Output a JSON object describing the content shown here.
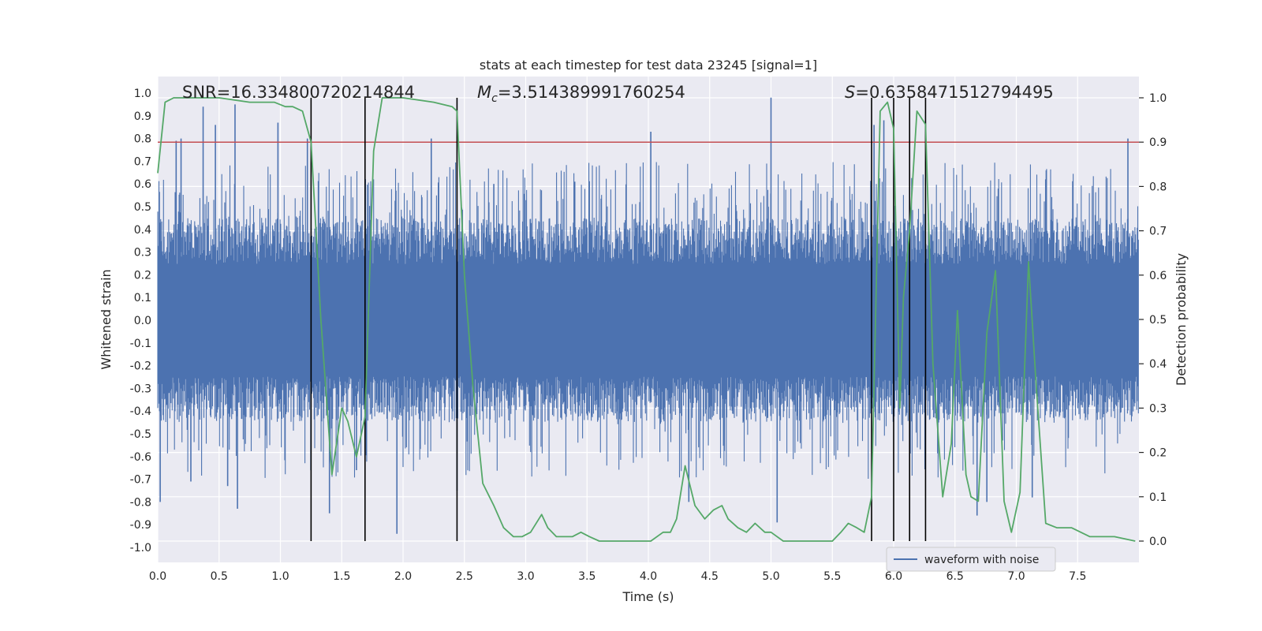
{
  "chart_data": {
    "type": "line",
    "title": "stats at each timestep for test data 23245 [signal=1]",
    "xlabel": "Time (s)",
    "ylabel_left": "Whitened strain",
    "ylabel_right": "Detection probability",
    "xlim": [
      0,
      8.0
    ],
    "ylim_left": [
      -1.05,
      1.05
    ],
    "ylim_right": [
      0,
      1.0
    ],
    "x_ticks": [
      "0.0",
      "0.5",
      "1.0",
      "1.5",
      "2.0",
      "2.5",
      "3.0",
      "3.5",
      "4.0",
      "4.5",
      "5.0",
      "5.5",
      "6.0",
      "6.5",
      "7.0",
      "7.5"
    ],
    "y_ticks_left": [
      "1.0",
      "0.9",
      "0.8",
      "0.7",
      "0.6",
      "0.5",
      "0.4",
      "0.3",
      "0.2",
      "0.1",
      "0.0",
      "-0.1",
      "-0.2",
      "-0.3",
      "-0.4",
      "-0.5",
      "-0.6",
      "-0.7",
      "-0.8",
      "-0.9",
      "-1.0"
    ],
    "y_ticks_right": [
      "1.0",
      "0.9",
      "0.8",
      "0.7",
      "0.6",
      "0.5",
      "0.4",
      "0.3",
      "0.2",
      "0.1",
      "0.0"
    ],
    "annotations": {
      "snr": "SNR=16.334800720214844",
      "mc_symbol": "M",
      "mc_sub": "c",
      "mc_value": "=3.514389991760254",
      "s_symbol": "S",
      "s_value": "=0.6358471512794495"
    },
    "legend": {
      "label": "waveform with noise",
      "placement": "lower-right"
    },
    "threshold": {
      "value": 0.9,
      "axis": "right",
      "color": "#c44e52"
    },
    "event_lines_x": [
      1.25,
      1.69,
      2.44,
      5.82,
      6.0,
      6.13,
      6.26
    ],
    "series": [
      {
        "name": "waveform with noise",
        "axis": "left",
        "color": "#4c72b0",
        "band": {
          "typical_min": -0.45,
          "typical_max": 0.45
        },
        "spikes": [
          {
            "x": 0.02,
            "y": -0.8
          },
          {
            "x": 0.15,
            "y": 0.79
          },
          {
            "x": 0.19,
            "y": 0.8
          },
          {
            "x": 0.27,
            "y": -0.71
          },
          {
            "x": 0.37,
            "y": 0.94
          },
          {
            "x": 0.47,
            "y": 0.86
          },
          {
            "x": 0.57,
            "y": -0.73
          },
          {
            "x": 0.63,
            "y": 0.95
          },
          {
            "x": 0.65,
            "y": -0.83
          },
          {
            "x": 0.98,
            "y": 0.87
          },
          {
            "x": 1.22,
            "y": 0.8
          },
          {
            "x": 1.4,
            "y": -0.85
          },
          {
            "x": 1.62,
            "y": -0.66
          },
          {
            "x": 1.95,
            "y": -0.94
          },
          {
            "x": 2.23,
            "y": 0.8
          },
          {
            "x": 2.44,
            "y": -0.75
          },
          {
            "x": 2.74,
            "y": 0.6
          },
          {
            "x": 3.4,
            "y": 0.61
          },
          {
            "x": 4.02,
            "y": 0.83
          },
          {
            "x": 4.33,
            "y": -0.8
          },
          {
            "x": 5.0,
            "y": 0.98
          },
          {
            "x": 5.05,
            "y": -0.89
          },
          {
            "x": 5.84,
            "y": 0.86
          },
          {
            "x": 5.92,
            "y": 0.88
          },
          {
            "x": 6.68,
            "y": -0.86
          },
          {
            "x": 6.76,
            "y": -0.8
          },
          {
            "x": 7.13,
            "y": -0.78
          },
          {
            "x": 7.91,
            "y": 0.8
          }
        ]
      },
      {
        "name": "detection probability",
        "axis": "right",
        "color": "#55a868",
        "x": [
          0.0,
          0.06,
          0.13,
          0.25,
          0.5,
          0.75,
          0.83,
          0.95,
          1.04,
          1.1,
          1.18,
          1.25,
          1.33,
          1.42,
          1.5,
          1.55,
          1.62,
          1.69,
          1.76,
          1.83,
          2.0,
          2.25,
          2.4,
          2.44,
          2.5,
          2.57,
          2.65,
          2.74,
          2.82,
          2.9,
          2.97,
          3.04,
          3.13,
          3.18,
          3.25,
          3.3,
          3.38,
          3.45,
          3.52,
          3.6,
          3.75,
          3.9,
          4.02,
          4.12,
          4.18,
          4.23,
          4.3,
          4.38,
          4.46,
          4.53,
          4.6,
          4.65,
          4.73,
          4.8,
          4.87,
          4.95,
          5.0,
          5.1,
          5.2,
          5.5,
          5.57,
          5.63,
          5.7,
          5.76,
          5.82,
          5.89,
          5.95,
          6.0,
          6.05,
          6.08,
          6.13,
          6.19,
          6.26,
          6.32,
          6.4,
          6.47,
          6.52,
          6.59,
          6.63,
          6.69,
          6.76,
          6.83,
          6.9,
          6.96,
          7.03,
          7.1,
          7.16,
          7.24,
          7.33,
          7.45,
          7.6,
          7.8,
          7.97
        ],
        "y": [
          0.83,
          0.99,
          1.0,
          1.0,
          1.0,
          0.99,
          0.99,
          0.99,
          0.98,
          0.98,
          0.97,
          0.9,
          0.5,
          0.15,
          0.3,
          0.27,
          0.19,
          0.28,
          0.88,
          1.0,
          1.0,
          0.99,
          0.98,
          0.97,
          0.6,
          0.35,
          0.13,
          0.08,
          0.03,
          0.01,
          0.01,
          0.02,
          0.06,
          0.03,
          0.01,
          0.01,
          0.01,
          0.02,
          0.01,
          0.0,
          0.0,
          0.0,
          0.0,
          0.02,
          0.02,
          0.05,
          0.17,
          0.08,
          0.05,
          0.07,
          0.08,
          0.05,
          0.03,
          0.02,
          0.04,
          0.02,
          0.02,
          0.0,
          0.0,
          0.0,
          0.02,
          0.04,
          0.03,
          0.02,
          0.1,
          0.97,
          0.99,
          0.93,
          0.3,
          0.55,
          0.7,
          0.97,
          0.94,
          0.4,
          0.1,
          0.22,
          0.52,
          0.15,
          0.1,
          0.09,
          0.47,
          0.61,
          0.09,
          0.02,
          0.11,
          0.63,
          0.36,
          0.04,
          0.03,
          0.03,
          0.01,
          0.01,
          0.0
        ]
      }
    ]
  }
}
